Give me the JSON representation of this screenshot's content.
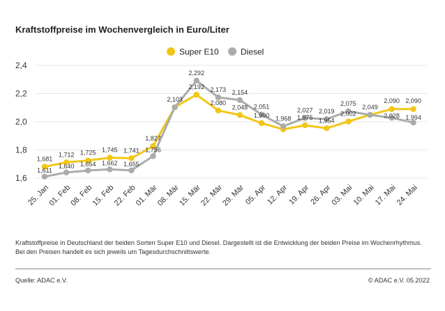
{
  "title": "Kraftstoffpreise im Wochenvergleich in Euro/Liter",
  "caption": "Kraftstoffpreise in Deutschland der beiden Sorten Super E10 und Diesel. Dargestellt ist die Entwicklung der beiden Preise im Wochenrhythmus. Bei den Preisen handelt es sich jeweils um Tagesdurchschnittswerte.",
  "source": "Quelle: ADAC e.V.",
  "copyright": "© ADAC e.V. 05.2022",
  "chart_data": {
    "type": "line",
    "title": "Kraftstoffpreise im Wochenvergleich in Euro/Liter",
    "xlabel": "",
    "ylabel": "",
    "categories": [
      "25. Jan",
      "01. Feb",
      "08. Feb",
      "15. Feb",
      "22. Feb",
      "01. Mär",
      "08. Mär",
      "15. Mär",
      "22. Mär",
      "29. Mär",
      "05. Apr",
      "12. Apr",
      "19. Apr",
      "26. Apr",
      "03. Mai",
      "10. Mai",
      "17. Mai",
      "24. Mai"
    ],
    "ylim": [
      1.6,
      2.4
    ],
    "yticks": [
      {
        "value": 1.6,
        "label": "1,6"
      },
      {
        "value": 1.8,
        "label": "1,8"
      },
      {
        "value": 2.0,
        "label": "2,0"
      },
      {
        "value": 2.2,
        "label": "2,2"
      },
      {
        "value": 2.4,
        "label": "2,4"
      }
    ],
    "grid": true,
    "legend_position": "top",
    "series": [
      {
        "name": "Super E10",
        "color": "#f2c618",
        "values": [
          1.681,
          1.712,
          1.725,
          1.745,
          1.741,
          1.827,
          2.103,
          2.192,
          2.08,
          2.048,
          1.99,
          1.946,
          1.975,
          1.954,
          2.002,
          2.049,
          2.09,
          2.09
        ],
        "labels": [
          "1,681",
          "1,712",
          "1,725",
          "1,745",
          "1,741",
          "1,827",
          "2,103",
          "2,192",
          "2,080",
          "2,048",
          "1,990",
          "",
          "1,975",
          "1,954",
          "2,002",
          "",
          "2,090",
          "2,090"
        ]
      },
      {
        "name": "Diesel",
        "color": "#a9acaa",
        "values": [
          1.611,
          1.64,
          1.654,
          1.662,
          1.655,
          1.756,
          2.103,
          2.292,
          2.173,
          2.154,
          2.051,
          1.968,
          2.027,
          2.019,
          2.075,
          2.049,
          2.028,
          1.994
        ],
        "labels": [
          "1,611",
          "1,640",
          "1,654",
          "1,662",
          "1,655",
          "1,756",
          "",
          "2,292",
          "2,173",
          "2,154",
          "2,051",
          "1,968",
          "2,027",
          "2,019",
          "2,075",
          "2,049",
          "2,028",
          "1,994"
        ]
      }
    ]
  }
}
